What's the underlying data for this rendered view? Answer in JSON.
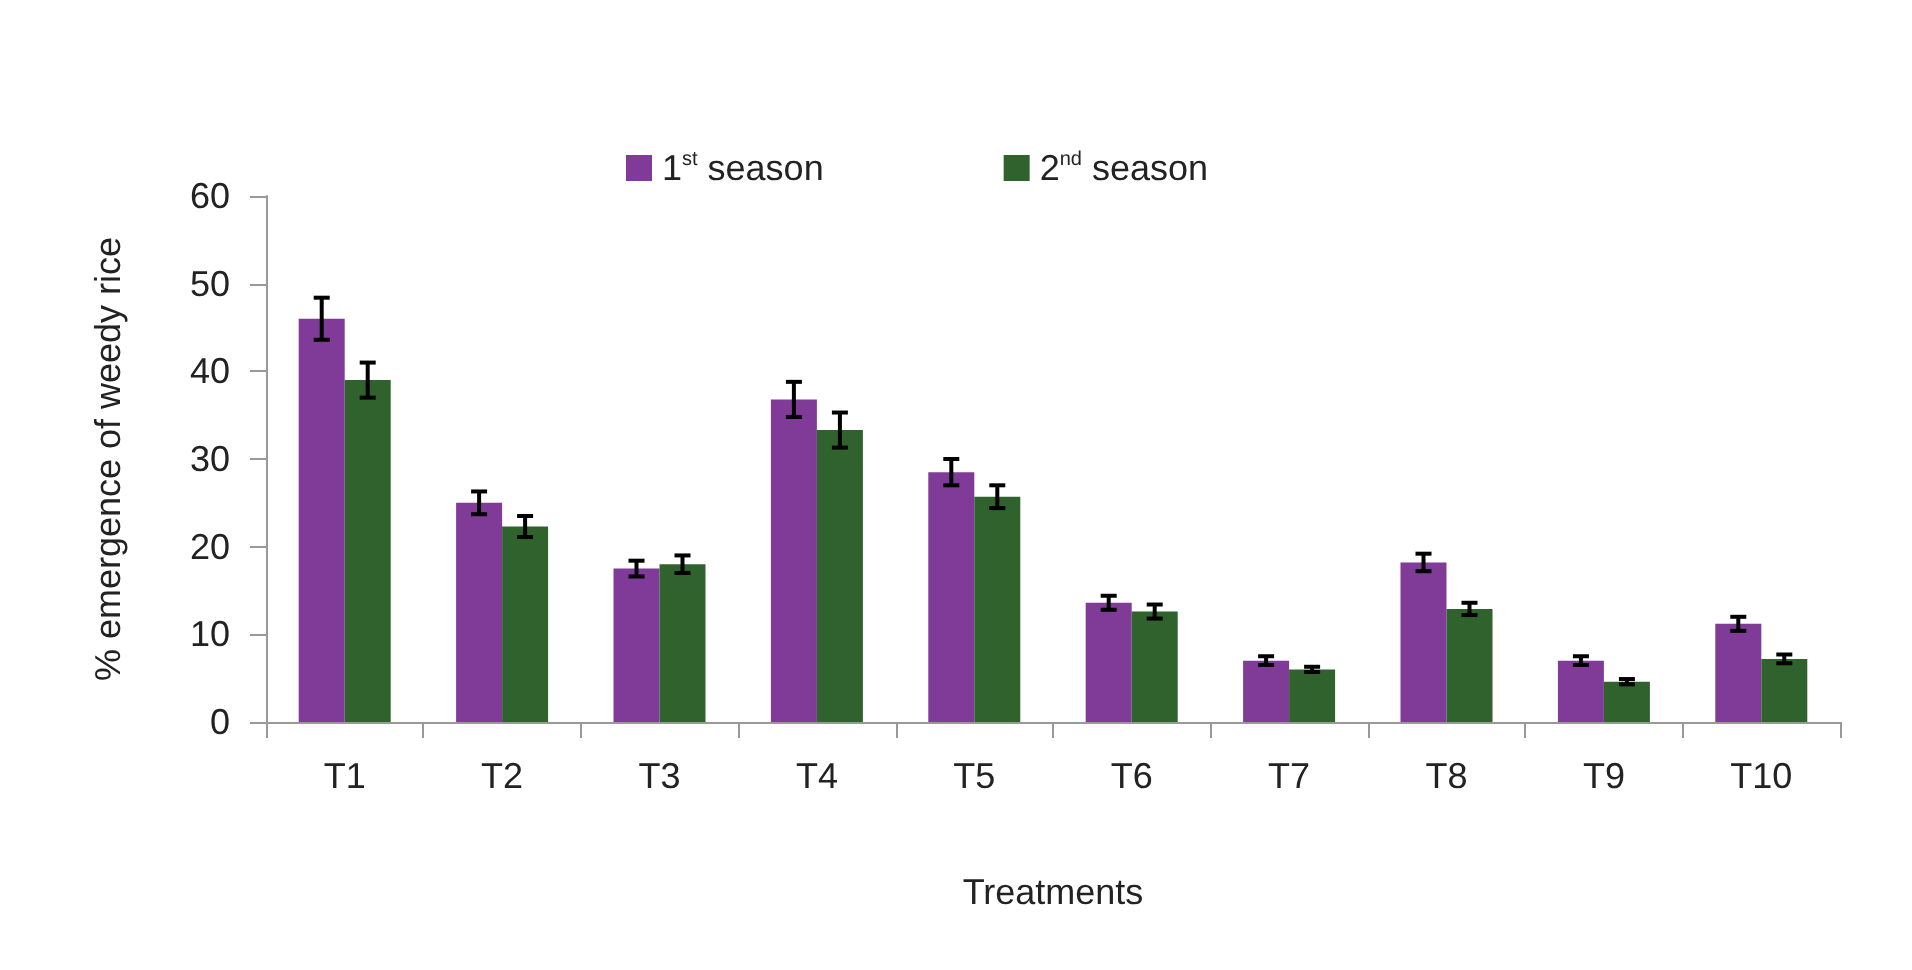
{
  "chart_data": {
    "type": "bar",
    "xlabel": "Treatments",
    "ylabel": "% emergence of weedy rice",
    "categories": [
      "T1",
      "T2",
      "T3",
      "T4",
      "T5",
      "T6",
      "T7",
      "T8",
      "T9",
      "T10"
    ],
    "series": [
      {
        "name": "1$^{st}$ season",
        "color": "#7f3b97",
        "values": [
          46,
          25,
          17.5,
          36.8,
          28.5,
          13.6,
          7,
          18.2,
          7,
          11.2
        ],
        "errors": [
          2.4,
          1.3,
          0.9,
          2,
          1.5,
          0.8,
          0.5,
          1,
          0.5,
          0.8
        ]
      },
      {
        "name": "2$^{nd}$ season",
        "color": "#2f622d",
        "values": [
          39,
          22.3,
          18,
          33.3,
          25.7,
          12.6,
          6,
          12.9,
          4.6,
          7.2
        ],
        "errors": [
          2,
          1.2,
          1,
          2,
          1.3,
          0.8,
          0.3,
          0.7,
          0.3,
          0.5
        ]
      }
    ],
    "ylim": [
      0,
      60
    ],
    "yticks": [
      0,
      10,
      20,
      30,
      40,
      50,
      60
    ],
    "grid": false,
    "legend": "top"
  }
}
